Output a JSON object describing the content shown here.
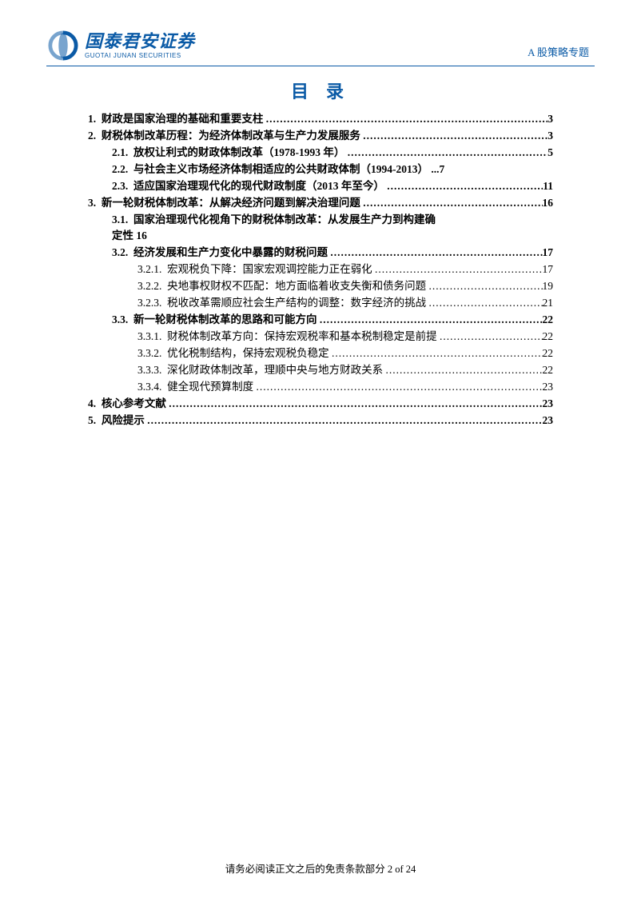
{
  "header": {
    "logo_cn": "国泰君安证券",
    "logo_en": "GUOTAI JUNAN SECURITIES",
    "right_text": "A 股策略专题",
    "logo_color": "#0a5aa6"
  },
  "title": "目 录",
  "toc": {
    "items": [
      {
        "level": 0,
        "num": "1.",
        "label": "财政是国家治理的基础和重要支柱",
        "page": "3",
        "bold": true
      },
      {
        "level": 0,
        "num": "2.",
        "label": "财税体制改革历程：为经济体制改革与生产力发展服务",
        "page": "3",
        "bold": true
      },
      {
        "level": 1,
        "num": "2.1.",
        "label": "放权让利式的财政体制改革（1978-1993 年）",
        "page": "5",
        "bold": true
      },
      {
        "level": 1,
        "num": "2.2.",
        "label": "与社会主义市场经济体制相适应的公共财政体制（1994-2013）",
        "page": "7",
        "bold": true,
        "nodots": true,
        "preEllipsis": "..."
      },
      {
        "level": 1,
        "num": "2.3.",
        "label": "适应国家治理现代化的现代财政制度（2013 年至今）",
        "page": "11",
        "bold": true
      },
      {
        "level": 0,
        "num": "3.",
        "label": "新一轮财税体制改革：从解决经济问题到解决治理问题",
        "page": "16",
        "bold": true
      },
      {
        "level": 1,
        "num": "3.1.",
        "label": "国家治理现代化视角下的财税体制改革：从发展生产力到构建确",
        "bold": true,
        "wrap": "定性 16"
      },
      {
        "level": 1,
        "num": "3.2.",
        "label": "经济发展和生产力变化中暴露的财税问题",
        "page": "17",
        "bold": true
      },
      {
        "level": 2,
        "num": "3.2.1.",
        "label": "宏观税负下降：国家宏观调控能力正在弱化",
        "page": "17",
        "bold": false
      },
      {
        "level": 2,
        "num": "3.2.2.",
        "label": "央地事权财权不匹配：地方面临着收支失衡和债务问题",
        "page": "19",
        "bold": false
      },
      {
        "level": 2,
        "num": "3.2.3.",
        "label": "税收改革需顺应社会生产结构的调整：数字经济的挑战",
        "page": "21",
        "bold": false
      },
      {
        "level": 1,
        "num": "3.3.",
        "label": "新一轮财税体制改革的思路和可能方向",
        "page": "22",
        "bold": true
      },
      {
        "level": 2,
        "num": "3.3.1.",
        "label": "财税体制改革方向：保持宏观税率和基本税制稳定是前提",
        "page": "22",
        "bold": false
      },
      {
        "level": 2,
        "num": "3.3.2.",
        "label": "优化税制结构，保持宏观税负稳定",
        "page": "22",
        "bold": false
      },
      {
        "level": 2,
        "num": "3.3.3.",
        "label": "深化财政体制改革，理顺中央与地方财政关系",
        "page": "22",
        "bold": false
      },
      {
        "level": 2,
        "num": "3.3.4.",
        "label": "健全现代预算制度",
        "page": "23",
        "bold": false
      },
      {
        "level": 0,
        "num": "4.",
        "label": "核心参考文献",
        "page": "23",
        "bold": true
      },
      {
        "level": 0,
        "num": "5.",
        "label": "风险提示",
        "page": "23",
        "bold": true
      }
    ]
  },
  "footer": {
    "text": "请务必阅读正文之后的免责条款部分 2 of 24"
  },
  "colors": {
    "brand": "#0a5aa6",
    "text": "#000000",
    "background": "#ffffff"
  }
}
